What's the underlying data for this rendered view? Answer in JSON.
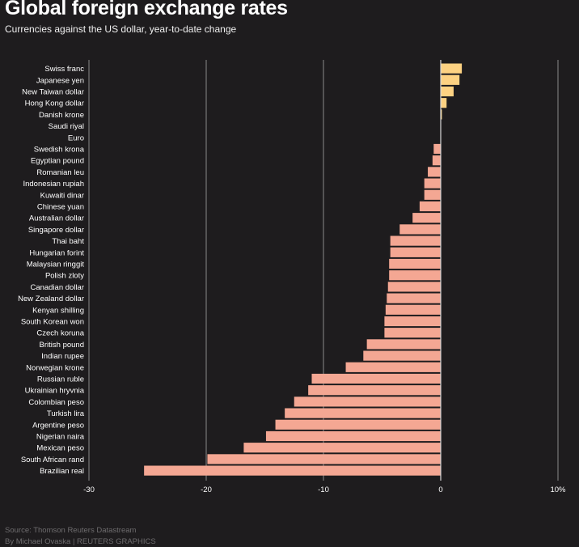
{
  "header": {
    "title": "Global foreign exchange rates",
    "subtitle": "Currencies against the US dollar, year-to-date change"
  },
  "footer": {
    "source": "Source: Thomson Reuters Datastream",
    "byline": "By Michael Ovaska | REUTERS GRAPHICS"
  },
  "colors": {
    "background": "#1e1c1e",
    "positive_bar": "#fdd282",
    "negative_bar": "#f4a793",
    "gridline": "#8a8a8a",
    "zero_line": "#d8d8d8"
  },
  "chart_data": {
    "type": "bar",
    "orientation": "horizontal",
    "xlim": [
      -30,
      10
    ],
    "x_ticks": [
      -30,
      -20,
      -10,
      0,
      10
    ],
    "x_tick_labels": [
      "-30",
      "-20",
      "-10",
      "0",
      "10%"
    ],
    "grid": true,
    "categories": [
      "Swiss franc",
      "Japanese yen",
      "New Taiwan dollar",
      "Hong Kong dollar",
      "Danish krone",
      "Saudi riyal",
      "Euro",
      "Swedish krona",
      "Egyptian pound",
      "Romanian leu",
      "Indonesian rupiah",
      "Kuwaiti dinar",
      "Chinese yuan",
      "Australian dollar",
      "Singapore dollar",
      "Thai baht",
      "Hungarian forint",
      "Malaysian ringgit",
      "Polish zloty",
      "Canadian dollar",
      "New Zealand dollar",
      "Kenyan shilling",
      "South Korean won",
      "Czech koruna",
      "British pound",
      "Indian rupee",
      "Norwegian krone",
      "Russian ruble",
      "Ukrainian hryvnia",
      "Colombian peso",
      "Turkish lira",
      "Argentine peso",
      "Nigerian naira",
      "Mexican peso",
      "South African rand",
      "Brazilian real"
    ],
    "values": [
      1.8,
      1.6,
      1.1,
      0.5,
      0.1,
      0.0,
      0.0,
      -0.6,
      -0.7,
      -1.1,
      -1.4,
      -1.4,
      -1.8,
      -2.4,
      -3.5,
      -4.3,
      -4.3,
      -4.4,
      -4.4,
      -4.5,
      -4.6,
      -4.7,
      -4.8,
      -4.8,
      -6.3,
      -6.6,
      -8.1,
      -11.0,
      -11.3,
      -12.5,
      -13.3,
      -14.1,
      -14.9,
      -16.8,
      -19.9,
      -25.3
    ]
  }
}
